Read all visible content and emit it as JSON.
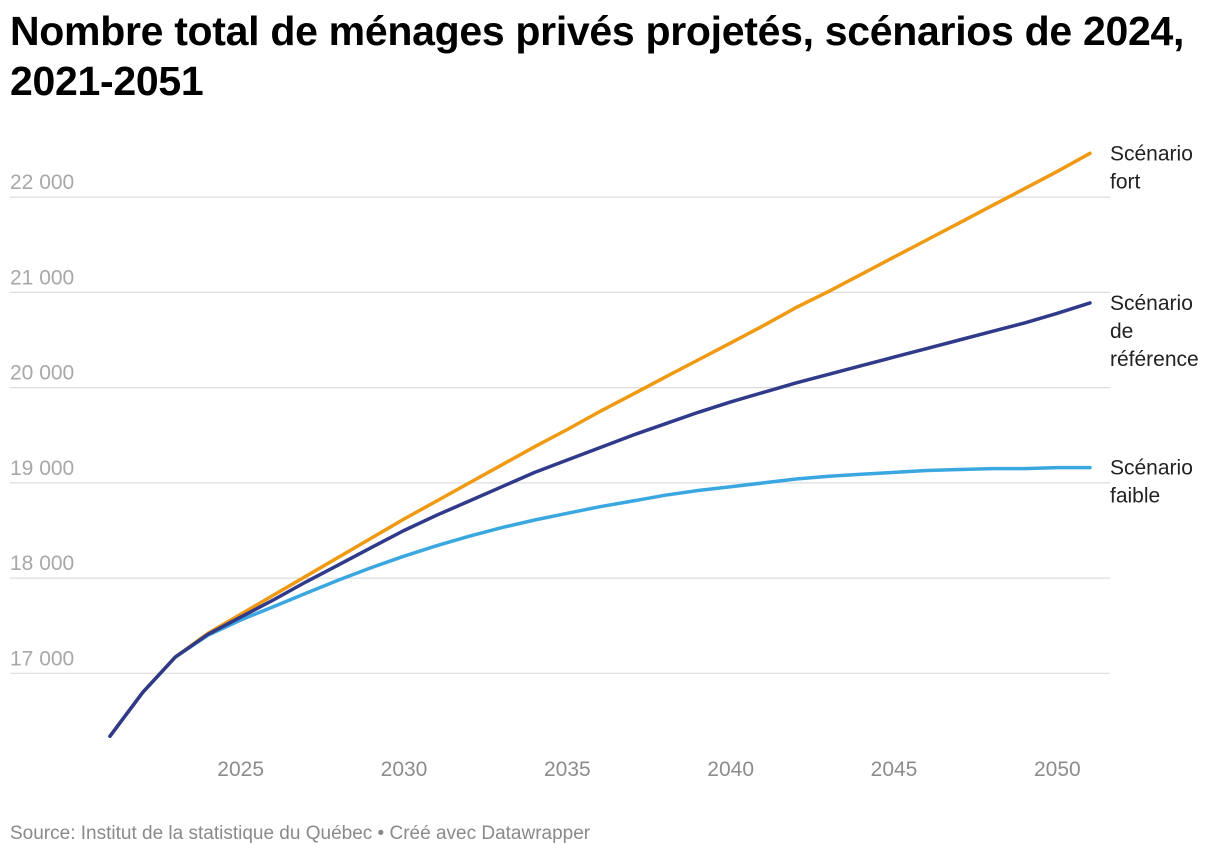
{
  "chart_data": {
    "type": "line",
    "title": "Nombre total de ménages privés projetés, scénarios de 2024, 2021-2051",
    "xlabel": "",
    "ylabel": "",
    "xlim": [
      2021,
      2051
    ],
    "ylim": [
      16300,
      22600
    ],
    "yticks": [
      17000,
      18000,
      19000,
      20000,
      21000,
      22000
    ],
    "ytick_labels": [
      "17 000",
      "18 000",
      "19 000",
      "20 000",
      "21 000",
      "22 000"
    ],
    "xticks": [
      2025,
      2030,
      2035,
      2040,
      2045,
      2050
    ],
    "xtick_labels": [
      "2025",
      "2030",
      "2035",
      "2040",
      "2045",
      "2050"
    ],
    "grid": true,
    "legend": "direct labels at right end of lines",
    "series": [
      {
        "name": "Scénario fort",
        "label_lines": [
          "Scénario",
          "fort"
        ],
        "color": "#f09a13",
        "x": [
          2021,
          2022,
          2023,
          2024,
          2025,
          2026,
          2027,
          2028,
          2029,
          2030,
          2031,
          2032,
          2033,
          2034,
          2035,
          2036,
          2037,
          2038,
          2039,
          2040,
          2041,
          2042,
          2043,
          2044,
          2045,
          2046,
          2047,
          2048,
          2049,
          2050,
          2051
        ],
        "values": [
          16340,
          16800,
          17170,
          17420,
          17620,
          17820,
          18020,
          18220,
          18420,
          18620,
          18810,
          19000,
          19190,
          19380,
          19560,
          19750,
          19930,
          20110,
          20290,
          20470,
          20650,
          20840,
          21010,
          21190,
          21370,
          21550,
          21730,
          21910,
          22090,
          22270,
          22460
        ]
      },
      {
        "name": "Scénario de référence",
        "label_lines": [
          "Scénario",
          "de",
          "référence"
        ],
        "color": "#303a8a",
        "x": [
          2021,
          2022,
          2023,
          2024,
          2025,
          2026,
          2027,
          2028,
          2029,
          2030,
          2031,
          2032,
          2033,
          2034,
          2035,
          2036,
          2037,
          2038,
          2039,
          2040,
          2041,
          2042,
          2043,
          2044,
          2045,
          2046,
          2047,
          2048,
          2049,
          2050,
          2051
        ],
        "values": [
          16340,
          16800,
          17170,
          17410,
          17590,
          17770,
          17960,
          18140,
          18320,
          18500,
          18660,
          18810,
          18960,
          19110,
          19240,
          19370,
          19500,
          19620,
          19740,
          19850,
          19950,
          20050,
          20140,
          20230,
          20320,
          20410,
          20500,
          20590,
          20680,
          20780,
          20890
        ]
      },
      {
        "name": "Scénario faible",
        "label_lines": [
          "Scénario",
          "faible"
        ],
        "color": "#3ba7e0",
        "x": [
          2021,
          2022,
          2023,
          2024,
          2025,
          2026,
          2027,
          2028,
          2029,
          2030,
          2031,
          2032,
          2033,
          2034,
          2035,
          2036,
          2037,
          2038,
          2039,
          2040,
          2041,
          2042,
          2043,
          2044,
          2045,
          2046,
          2047,
          2048,
          2049,
          2050,
          2051
        ],
        "values": [
          16340,
          16800,
          17170,
          17400,
          17560,
          17700,
          17840,
          17980,
          18110,
          18230,
          18340,
          18440,
          18530,
          18610,
          18680,
          18750,
          18810,
          18870,
          18920,
          18960,
          19000,
          19040,
          19070,
          19090,
          19110,
          19130,
          19140,
          19150,
          19150,
          19160,
          19160
        ]
      }
    ]
  },
  "footer": {
    "source": "Source: Institut de la statistique du Québec • Créé avec Datawrapper"
  }
}
